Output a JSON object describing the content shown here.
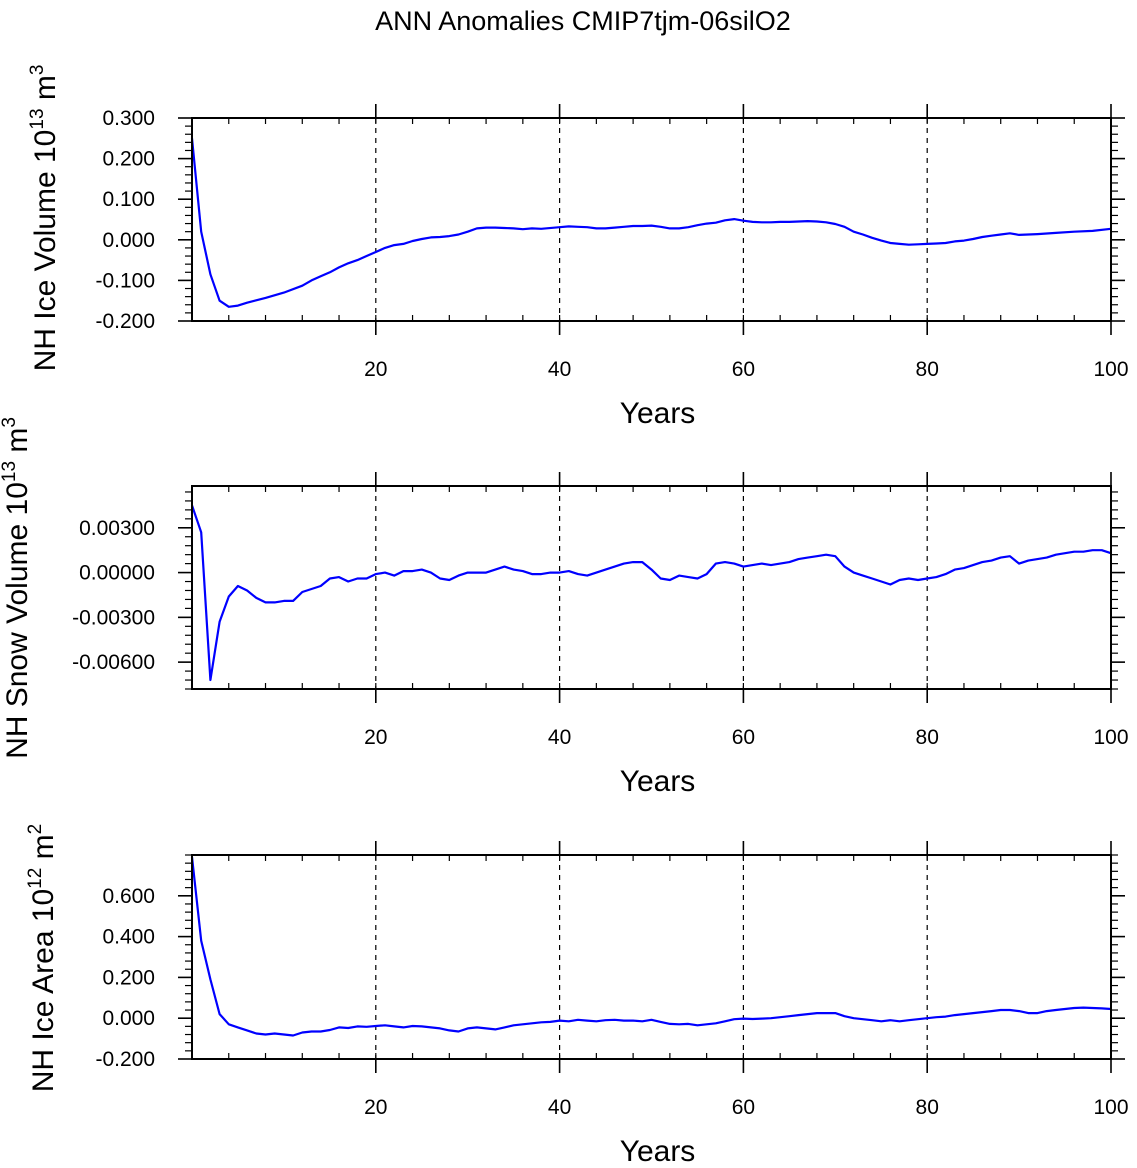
{
  "title": "ANN Anomalies CMIP7tjm-06silO2",
  "colors": {
    "series": "#0000ff",
    "axes": "#000000",
    "background": "#ffffff"
  },
  "chart_data": [
    {
      "type": "line",
      "ylabel": "NH Ice Volume 10",
      "ylabel_sup": "13",
      "ylabel_unit": " m",
      "ylabel_unit_sup": "3",
      "xlabel": "Years",
      "xlim": [
        0,
        100
      ],
      "ylim": [
        -0.2,
        0.3
      ],
      "xticks": [
        "20",
        "40",
        "60",
        "80",
        "100"
      ],
      "yticks": [
        {
          "v": 0.3,
          "label": "0.300"
        },
        {
          "v": 0.2,
          "label": "0.200"
        },
        {
          "v": 0.1,
          "label": "0.100"
        },
        {
          "v": 0.0,
          "label": "0.000"
        },
        {
          "v": -0.1,
          "label": "-0.100"
        },
        {
          "v": -0.2,
          "label": "-0.200"
        }
      ],
      "grid": "vertical dashed at labeled x ticks",
      "series": [
        {
          "x": [
            0,
            1,
            2,
            3,
            4,
            5,
            6,
            8,
            10,
            12,
            13,
            14,
            15,
            16,
            17,
            18,
            19,
            20,
            21,
            22,
            23,
            24,
            25,
            26,
            27,
            28,
            29,
            30,
            31,
            32,
            33,
            34,
            35,
            36,
            37,
            38,
            40,
            41,
            42,
            43,
            44,
            45,
            46,
            47,
            48,
            49,
            50,
            51,
            52,
            53,
            54,
            55,
            56,
            57,
            58,
            59,
            60,
            61,
            62,
            63,
            64,
            65,
            66,
            67,
            68,
            69,
            70,
            71,
            72,
            73,
            74,
            75,
            76,
            77,
            78,
            79,
            80,
            81,
            82,
            83,
            84,
            85,
            86,
            87,
            88,
            89,
            90,
            92,
            94,
            96,
            98,
            100
          ],
          "y": [
            0.25,
            0.02,
            -0.085,
            -0.15,
            -0.165,
            -0.162,
            -0.155,
            -0.143,
            -0.13,
            -0.113,
            -0.1,
            -0.09,
            -0.08,
            -0.068,
            -0.058,
            -0.05,
            -0.04,
            -0.03,
            -0.02,
            -0.013,
            -0.01,
            -0.003,
            0.002,
            0.006,
            0.007,
            0.009,
            0.013,
            0.02,
            0.028,
            0.03,
            0.03,
            0.029,
            0.028,
            0.026,
            0.028,
            0.027,
            0.031,
            0.033,
            0.032,
            0.031,
            0.028,
            0.028,
            0.03,
            0.032,
            0.034,
            0.034,
            0.035,
            0.032,
            0.028,
            0.028,
            0.031,
            0.036,
            0.04,
            0.042,
            0.048,
            0.051,
            0.047,
            0.044,
            0.043,
            0.043,
            0.044,
            0.044,
            0.045,
            0.046,
            0.045,
            0.043,
            0.039,
            0.032,
            0.02,
            0.013,
            0.005,
            -0.002,
            -0.008,
            -0.01,
            -0.012,
            -0.011,
            -0.01,
            -0.009,
            -0.008,
            -0.004,
            -0.002,
            0.002,
            0.007,
            0.01,
            0.013,
            0.016,
            0.012,
            0.014,
            0.017,
            0.02,
            0.022,
            0.027
          ]
        }
      ]
    },
    {
      "type": "line",
      "ylabel": "NH Snow Volume 10",
      "ylabel_sup": "13",
      "ylabel_unit": " m",
      "ylabel_unit_sup": "3",
      "xlabel": "Years",
      "xlim": [
        0,
        100
      ],
      "ylim": [
        -0.0078,
        0.0058
      ],
      "xticks": [
        "20",
        "40",
        "60",
        "80",
        "100"
      ],
      "yticks": [
        {
          "v": 0.003,
          "label": "0.00300"
        },
        {
          "v": 0.0,
          "label": "0.00000"
        },
        {
          "v": -0.003,
          "label": "-0.00300"
        },
        {
          "v": -0.006,
          "label": "-0.00600"
        }
      ],
      "grid": "vertical dashed at labeled x ticks",
      "series": [
        {
          "x": [
            0,
            1,
            2,
            3,
            4,
            5,
            6,
            7,
            8,
            9,
            10,
            11,
            12,
            13,
            14,
            15,
            16,
            17,
            18,
            19,
            20,
            21,
            22,
            23,
            24,
            25,
            26,
            27,
            28,
            29,
            30,
            31,
            32,
            33,
            34,
            35,
            36,
            37,
            38,
            39,
            40,
            41,
            42,
            43,
            44,
            45,
            46,
            47,
            48,
            49,
            50,
            51,
            52,
            53,
            54,
            55,
            56,
            57,
            58,
            59,
            60,
            61,
            62,
            63,
            64,
            65,
            66,
            67,
            68,
            69,
            70,
            71,
            72,
            73,
            74,
            75,
            76,
            77,
            78,
            79,
            80,
            81,
            82,
            83,
            84,
            85,
            86,
            87,
            88,
            89,
            90,
            91,
            92,
            93,
            94,
            95,
            96,
            97,
            98,
            99,
            100
          ],
          "y": [
            0.0045,
            0.0027,
            -0.0072,
            -0.0033,
            -0.0016,
            -0.0009,
            -0.0012,
            -0.0017,
            -0.002,
            -0.002,
            -0.0019,
            -0.0019,
            -0.0013,
            -0.0011,
            -0.0009,
            -0.0004,
            -0.0003,
            -0.0006,
            -0.0004,
            -0.0004,
            -0.0001,
            0.0,
            -0.0002,
            0.0001,
            0.0001,
            0.0002,
            0.0,
            -0.0004,
            -0.0005,
            -0.0002,
            0.0,
            0.0,
            0.0,
            0.0002,
            0.0004,
            0.0002,
            0.0001,
            -0.0001,
            -0.0001,
            0.0,
            0.0,
            0.0001,
            -0.0001,
            -0.0002,
            0.0,
            0.0002,
            0.0004,
            0.0006,
            0.0007,
            0.0007,
            0.0002,
            -0.0004,
            -0.0005,
            -0.0002,
            -0.0003,
            -0.0004,
            -0.0001,
            0.0006,
            0.0007,
            0.0006,
            0.0004,
            0.0005,
            0.0006,
            0.0005,
            0.0006,
            0.0007,
            0.0009,
            0.001,
            0.0011,
            0.0012,
            0.0011,
            0.0004,
            0.0,
            -0.0002,
            -0.0004,
            -0.0006,
            -0.0008,
            -0.0005,
            -0.0004,
            -0.0005,
            -0.0004,
            -0.0003,
            -0.0001,
            0.0002,
            0.0003,
            0.0005,
            0.0007,
            0.0008,
            0.001,
            0.0011,
            0.0006,
            0.0008,
            0.0009,
            0.001,
            0.0012,
            0.0013,
            0.0014,
            0.0014,
            0.0015,
            0.0015,
            0.0013
          ]
        }
      ]
    },
    {
      "type": "line",
      "ylabel": "NH Ice Area 10",
      "ylabel_sup": "12",
      "ylabel_unit": " m",
      "ylabel_unit_sup": "2",
      "xlabel": "Years",
      "xlim": [
        0,
        100
      ],
      "ylim": [
        -0.2,
        0.8
      ],
      "xticks": [
        "20",
        "40",
        "60",
        "80",
        "100"
      ],
      "yticks": [
        {
          "v": 0.6,
          "label": "0.600"
        },
        {
          "v": 0.4,
          "label": "0.400"
        },
        {
          "v": 0.2,
          "label": "0.200"
        },
        {
          "v": 0.0,
          "label": "0.000"
        },
        {
          "v": -0.2,
          "label": "-0.200"
        }
      ],
      "grid": "vertical dashed at labeled x ticks",
      "series": [
        {
          "x": [
            0,
            1,
            2,
            3,
            4,
            5,
            6,
            7,
            8,
            9,
            10,
            11,
            12,
            13,
            14,
            15,
            16,
            17,
            18,
            19,
            20,
            21,
            22,
            23,
            24,
            25,
            26,
            27,
            28,
            29,
            30,
            31,
            32,
            33,
            34,
            35,
            36,
            37,
            38,
            39,
            40,
            41,
            42,
            43,
            44,
            45,
            46,
            47,
            48,
            49,
            50,
            51,
            52,
            53,
            54,
            55,
            56,
            57,
            58,
            59,
            60,
            61,
            62,
            63,
            64,
            65,
            66,
            67,
            68,
            69,
            70,
            71,
            72,
            73,
            74,
            75,
            76,
            77,
            78,
            79,
            80,
            81,
            82,
            83,
            84,
            85,
            86,
            87,
            88,
            89,
            90,
            91,
            92,
            93,
            94,
            95,
            96,
            97,
            98,
            99,
            100
          ],
          "y": [
            0.79,
            0.38,
            0.19,
            0.02,
            -0.03,
            -0.045,
            -0.06,
            -0.075,
            -0.08,
            -0.075,
            -0.08,
            -0.085,
            -0.07,
            -0.065,
            -0.065,
            -0.058,
            -0.045,
            -0.048,
            -0.04,
            -0.042,
            -0.038,
            -0.035,
            -0.04,
            -0.045,
            -0.038,
            -0.04,
            -0.045,
            -0.05,
            -0.06,
            -0.065,
            -0.05,
            -0.045,
            -0.05,
            -0.055,
            -0.045,
            -0.035,
            -0.03,
            -0.025,
            -0.02,
            -0.018,
            -0.012,
            -0.015,
            -0.008,
            -0.012,
            -0.015,
            -0.01,
            -0.008,
            -0.012,
            -0.012,
            -0.015,
            -0.008,
            -0.018,
            -0.028,
            -0.03,
            -0.028,
            -0.035,
            -0.03,
            -0.025,
            -0.015,
            -0.005,
            -0.002,
            -0.004,
            -0.002,
            0.0,
            0.005,
            0.01,
            0.015,
            0.02,
            0.025,
            0.025,
            0.025,
            0.01,
            0.0,
            -0.005,
            -0.01,
            -0.015,
            -0.01,
            -0.015,
            -0.01,
            -0.005,
            0.0,
            0.005,
            0.008,
            0.015,
            0.02,
            0.025,
            0.03,
            0.035,
            0.04,
            0.04,
            0.035,
            0.025,
            0.025,
            0.035,
            0.04,
            0.045,
            0.05,
            0.052,
            0.05,
            0.048,
            0.045
          ]
        }
      ]
    }
  ]
}
